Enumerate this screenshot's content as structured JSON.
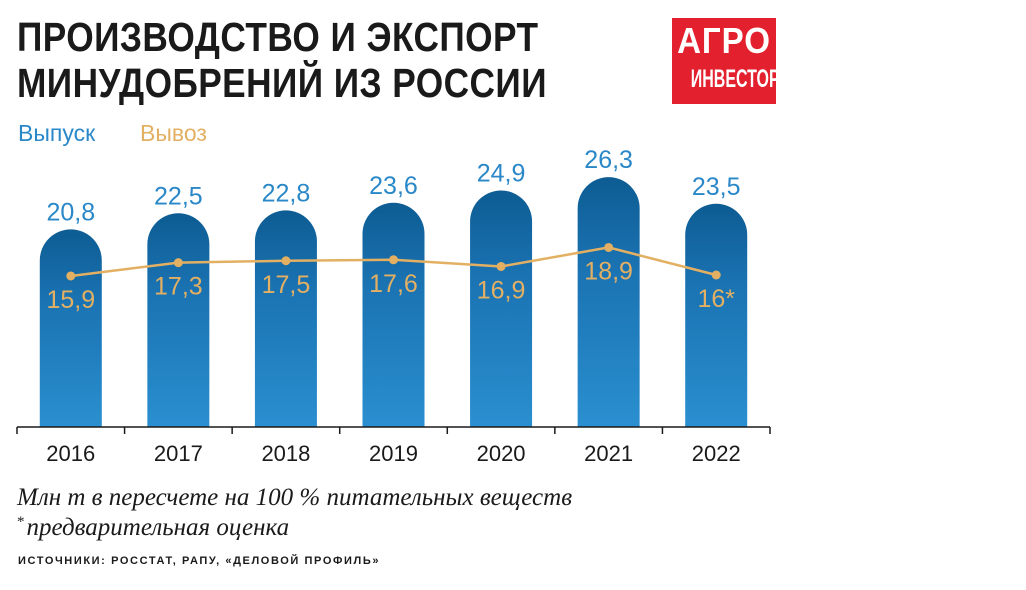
{
  "title_line1": "ПРОИЗВОДСТВО И ЭКСПОРТ",
  "title_line2": "МИНУДОБРЕНИЙ ИЗ РОССИИ",
  "logo": {
    "top": "АГРО",
    "bottom": "ИНВЕСТОР",
    "color": "#e3202d"
  },
  "note": "Млн т в пересчете на 100 % питательных веществ",
  "footnote_mark": "*",
  "footnote": "предварительная оценка",
  "source": "ИСТОЧНИКИ: РОССТАТ, РАПУ, «ДЕЛОВОЙ ПРОФИЛЬ»",
  "chart_data": {
    "type": "bar",
    "categories": [
      "2016",
      "2017",
      "2018",
      "2019",
      "2020",
      "2021",
      "2022"
    ],
    "series": [
      {
        "name": "Выпуск",
        "type": "bar",
        "color": "#2a88c8",
        "values": [
          20.8,
          22.5,
          22.8,
          23.6,
          24.9,
          26.3,
          23.5
        ],
        "labels": [
          "20,8",
          "22,5",
          "22,8",
          "23,6",
          "24,9",
          "26,3",
          "23,5"
        ]
      },
      {
        "name": "Вывоз",
        "type": "line",
        "color": "#e3b063",
        "values": [
          15.9,
          17.3,
          17.5,
          17.6,
          16.9,
          18.9,
          16.0
        ],
        "labels": [
          "15,9",
          "17,3",
          "17,5",
          "17,6",
          "16,9",
          "18,9",
          "16*"
        ]
      }
    ],
    "ylim": [
      0,
      30
    ],
    "legend": "top-left",
    "grid": false
  }
}
